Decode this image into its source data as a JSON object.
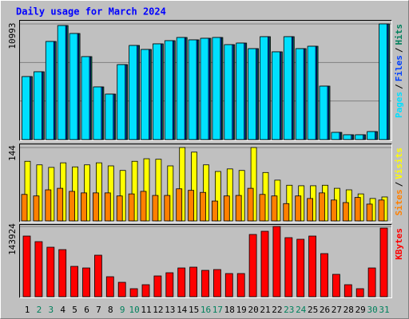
{
  "title": "Daily usage for March 2024",
  "legend_separator": "/",
  "chart_data": [
    {
      "type": "bar",
      "ylim": [
        0,
        10993
      ],
      "yticks": [
        10993
      ],
      "series": [
        {
          "name": "Pages",
          "color": "#00e0ff",
          "values": [
            5989,
            6444,
            9325,
            10841,
            10083,
            7885,
            5004,
            4321,
            7126,
            8946,
            8567,
            9098,
            9401,
            9704,
            9477,
            9628,
            9704,
            9022,
            9173,
            8643,
            9780,
            8340,
            9780,
            8643,
            8870,
            5079,
            682,
            455,
            455,
            758,
            10993
          ]
        },
        {
          "name": "Files",
          "color": "#0040ff",
          "values": [
            5989,
            6444,
            9325,
            10841,
            10083,
            7885,
            5004,
            4321,
            7126,
            8946,
            8567,
            9098,
            9401,
            9704,
            9477,
            9628,
            9704,
            9022,
            9173,
            8643,
            9780,
            8340,
            9780,
            8643,
            8870,
            5079,
            682,
            455,
            455,
            758,
            10993
          ]
        },
        {
          "name": "Hits",
          "color": "#00805c",
          "values": [
            5989,
            6444,
            9325,
            10841,
            10083,
            7885,
            5004,
            4321,
            7126,
            8946,
            8567,
            9098,
            9401,
            9704,
            9477,
            9628,
            9704,
            9022,
            9173,
            8643,
            9780,
            8340,
            9780,
            8643,
            8870,
            5079,
            682,
            455,
            455,
            758,
            10993
          ]
        }
      ]
    },
    {
      "type": "bar",
      "ylim": [
        0,
        144
      ],
      "yticks": [
        144
      ],
      "series": [
        {
          "name": "Sites",
          "color": "#ff8000",
          "values": [
            52,
            49,
            61,
            64,
            58,
            55,
            55,
            55,
            49,
            53,
            58,
            50,
            50,
            63,
            60,
            56,
            39,
            49,
            50,
            64,
            52,
            49,
            34,
            49,
            44,
            55,
            41,
            36,
            46,
            33,
            41
          ]
        },
        {
          "name": "Visits",
          "color": "#ffff00",
          "values": [
            117,
            110,
            105,
            114,
            106,
            110,
            114,
            108,
            99,
            117,
            122,
            121,
            108,
            144,
            135,
            110,
            97,
            102,
            99,
            144,
            95,
            80,
            70,
            69,
            69,
            70,
            64,
            61,
            53,
            44,
            47
          ]
        }
      ]
    },
    {
      "type": "bar",
      "ylim": [
        0,
        143924
      ],
      "yticks": [
        143924
      ],
      "categories": [
        "1",
        "2",
        "3",
        "4",
        "5",
        "6",
        "7",
        "8",
        "9",
        "10",
        "11",
        "12",
        "13",
        "14",
        "15",
        "16",
        "17",
        "18",
        "19",
        "20",
        "21",
        "22",
        "23",
        "24",
        "25",
        "26",
        "27",
        "28",
        "29",
        "30",
        "31"
      ],
      "category_colors": [
        "#000000",
        "#00805c",
        "#00805c",
        "#000000",
        "#000000",
        "#000000",
        "#000000",
        "#000000",
        "#00805c",
        "#00805c",
        "#000000",
        "#000000",
        "#000000",
        "#000000",
        "#000000",
        "#00805c",
        "#00805c",
        "#000000",
        "#000000",
        "#000000",
        "#000000",
        "#000000",
        "#00805c",
        "#00805c",
        "#000000",
        "#000000",
        "#000000",
        "#000000",
        "#000000",
        "#00805c",
        "#00805c"
      ],
      "series": [
        {
          "name": "KBytes",
          "color": "#ff0000",
          "values": [
            124298,
            112850,
            101401,
            96495,
            62149,
            58878,
            85044,
            40888,
            29439,
            16355,
            24533,
            42523,
            49065,
            58878,
            60513,
            53971,
            55607,
            47429,
            47429,
            127569,
            134111,
            143924,
            121027,
            117756,
            124298,
            88317,
            45794,
            24533,
            16355,
            58878,
            140653
          ]
        }
      ]
    }
  ]
}
